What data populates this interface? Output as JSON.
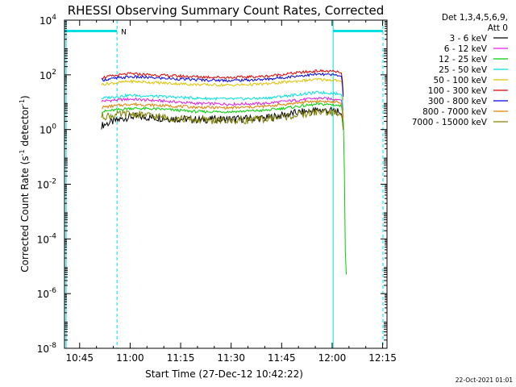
{
  "chart_data": {
    "type": "line",
    "title": "RHESSI Observing Summary Count Rates, Corrected",
    "xlabel": "Start Time (27-Dec-12 10:42:22)",
    "ylabel_main": "Corrected Count Rate (s",
    "ylabel_sup1": "-1",
    "ylabel_mid": " detector",
    "ylabel_sup2": "-1",
    "ylabel_end": ")",
    "scale": "log",
    "x_ticks": [
      "10:45",
      "11:00",
      "11:15",
      "11:30",
      "11:45",
      "12:00",
      "12:15"
    ],
    "x_tick_minutes": [
      165,
      180,
      195,
      210,
      225,
      240,
      255
    ],
    "xlim_minutes": [
      160.5,
      256.3
    ],
    "y_ticks": [
      {
        "base": "10",
        "exp": "4",
        "value": 10000
      },
      {
        "base": "10",
        "exp": "2",
        "value": 100
      },
      {
        "base": "10",
        "exp": "0",
        "value": 1
      },
      {
        "base": "10",
        "exp": "-2",
        "value": 0.01
      },
      {
        "base": "10",
        "exp": "-4",
        "value": 0.0001
      },
      {
        "base": "10",
        "exp": "-6",
        "value": 1e-06
      },
      {
        "base": "10",
        "exp": "-8",
        "value": 1e-08
      }
    ],
    "ylim": [
      1e-08,
      10000
    ],
    "legend_header": [
      "Det 1,3,4,5,6,9,",
      "Att 0"
    ],
    "legend_position": "right",
    "series": [
      {
        "name": "3 - 6 keV",
        "color": "#000000",
        "x": [
          171.5,
          174,
          180,
          190,
          200,
          210,
          220,
          230,
          236,
          241,
          242.9,
          243.3
        ],
        "y": [
          1.4,
          1.8,
          3,
          2.6,
          2.3,
          2.4,
          2.6,
          4.2,
          5.2,
          4.8,
          3.6,
          1
        ]
      },
      {
        "name": "6 - 12 keV",
        "color": "#e020e0",
        "x": [
          171.5,
          180,
          190,
          200,
          210,
          220,
          230,
          236,
          241,
          242.9,
          243.3
        ],
        "y": [
          11,
          13,
          11,
          9,
          8.5,
          9,
          12,
          14,
          13,
          12,
          3
        ]
      },
      {
        "name": "12 - 25 keV",
        "color": "#00d000",
        "x": [
          171.5,
          180,
          190,
          200,
          210,
          220,
          230,
          236,
          241,
          242.9,
          243.5,
          244,
          244.2
        ],
        "y": [
          4.5,
          6,
          5.5,
          4.5,
          4.5,
          5,
          7,
          8.5,
          8,
          7,
          1,
          5e-06,
          5e-06
        ]
      },
      {
        "name": "25 - 50 keV",
        "color": "#00e0e0",
        "x": [
          171.5,
          180,
          190,
          200,
          210,
          220,
          230,
          236,
          241,
          242.9,
          243.3
        ],
        "y": [
          14,
          18,
          16,
          14,
          13,
          14,
          19,
          23,
          21,
          19,
          5
        ]
      },
      {
        "name": "50 - 100 keV",
        "color": "#e0c000",
        "x": [
          171.5,
          180,
          190,
          200,
          210,
          220,
          230,
          236,
          241,
          242.9,
          243.3
        ],
        "y": [
          45,
          58,
          50,
          44,
          42,
          46,
          60,
          68,
          64,
          58,
          12
        ]
      },
      {
        "name": "100 - 300 keV",
        "color": "#e00000",
        "x": [
          171.5,
          180,
          190,
          200,
          210,
          220,
          230,
          236,
          241,
          242.9,
          243.3
        ],
        "y": [
          80,
          110,
          95,
          85,
          80,
          88,
          120,
          140,
          130,
          115,
          20
        ]
      },
      {
        "name": "300 - 800 keV",
        "color": "#0000e0",
        "x": [
          171.5,
          180,
          190,
          200,
          210,
          220,
          230,
          236,
          241,
          242.9,
          243.3
        ],
        "y": [
          65,
          85,
          75,
          66,
          62,
          68,
          92,
          105,
          98,
          88,
          16
        ]
      },
      {
        "name": "800 - 7000 keV",
        "color": "#e08000",
        "x": [
          171.5,
          180,
          190,
          200,
          210,
          220,
          230,
          236,
          241,
          242.9,
          243.3
        ],
        "y": [
          6.5,
          8.5,
          7.5,
          6.5,
          6.2,
          7,
          9.5,
          11,
          10,
          9,
          2.5
        ]
      },
      {
        "name": "7000 - 15000 keV",
        "color": "#808000",
        "x": [
          171.5,
          180,
          190,
          200,
          210,
          220,
          230,
          236,
          241,
          242.9,
          243.3
        ],
        "y": [
          3,
          3.8,
          2.8,
          2.2,
          2.1,
          2.4,
          3.4,
          4.5,
          4,
          3.3,
          1
        ]
      }
    ],
    "bars": [
      {
        "label": "",
        "color": "#00e0e0",
        "x_start": 160.5,
        "x_end": 176.1,
        "y": 4000
      },
      {
        "label": "N",
        "color": "#00e0e0",
        "x_start": null,
        "x_end": null,
        "y": 4000
      },
      {
        "label": "",
        "color": "#00e0e0",
        "x_start": 240.3,
        "x_end": 255.1,
        "y": 4000
      }
    ],
    "vlines": [
      {
        "kind": "solid",
        "x": 161.0,
        "color": "#00e0e0"
      },
      {
        "kind": "dashed",
        "x": 176.1,
        "color": "#00e0e0"
      },
      {
        "kind": "solid",
        "x": 240.3,
        "color": "#00e0e0"
      },
      {
        "kind": "dashed",
        "x": 255.1,
        "color": "#00e0e0"
      }
    ],
    "grid": false
  },
  "footer_timestamp": "22-Oct-2021 01:01"
}
